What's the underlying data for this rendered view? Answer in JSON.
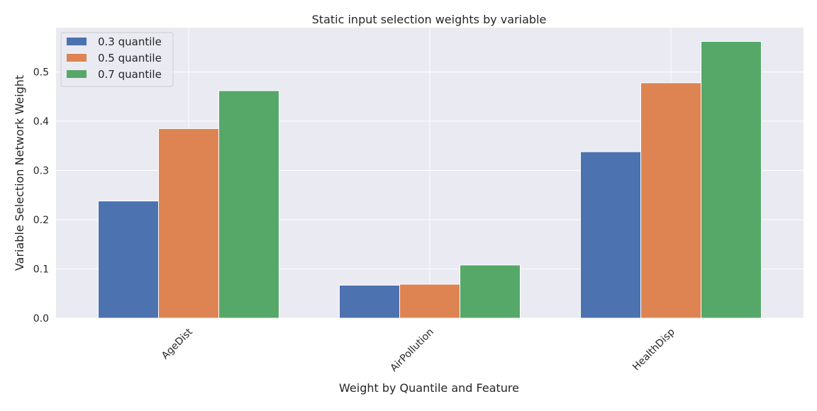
{
  "chart_data": {
    "type": "bar",
    "title": "Static input selection weights by variable",
    "xlabel": "Weight by Quantile and Feature",
    "ylabel": "Variable Selection Network Weight",
    "categories": [
      "AgeDist",
      "AirPollution",
      "HealthDisp"
    ],
    "series": [
      {
        "name": "0.3 quantile",
        "color": "#4c72b0",
        "values": [
          0.238,
          0.067,
          0.338
        ]
      },
      {
        "name": "0.5 quantile",
        "color": "#dd8452",
        "values": [
          0.385,
          0.069,
          0.478
        ]
      },
      {
        "name": "0.7 quantile",
        "color": "#55a868",
        "values": [
          0.462,
          0.108,
          0.562
        ]
      }
    ],
    "ylim": [
      0,
      0.59
    ],
    "yticks": [
      "0.0",
      "0.1",
      "0.2",
      "0.3",
      "0.4",
      "0.5"
    ],
    "grid": true,
    "legend_position": "top-left",
    "background_color": "#eaeaf2",
    "grid_color": "#ffffff"
  }
}
